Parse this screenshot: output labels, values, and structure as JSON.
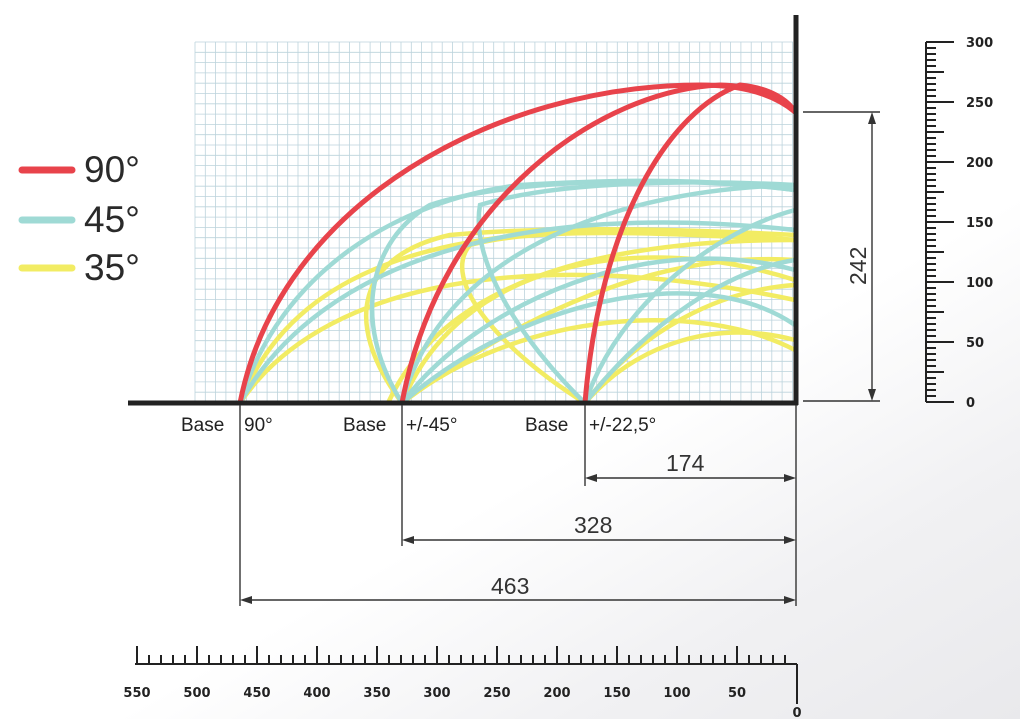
{
  "legend": [
    {
      "label": "90°",
      "color": "#e8434b"
    },
    {
      "label": "45°",
      "color": "#9fdad5"
    },
    {
      "label": "35°",
      "color": "#f2ec63"
    }
  ],
  "bases": [
    {
      "label": "Base",
      "angle": "90°"
    },
    {
      "label": "Base",
      "angle": "+/-45°"
    },
    {
      "label": "Base",
      "angle": "+/-22,5°"
    }
  ],
  "dimensions": {
    "height": "242",
    "d1": "174",
    "d2": "328",
    "d3": "463"
  },
  "right_scale_labels": [
    "300",
    "250",
    "200",
    "150",
    "100",
    "50",
    "0"
  ],
  "bottom_scale_labels": [
    "550",
    "500",
    "450",
    "400",
    "350",
    "300",
    "250",
    "200",
    "150",
    "100",
    "50",
    "0"
  ]
}
